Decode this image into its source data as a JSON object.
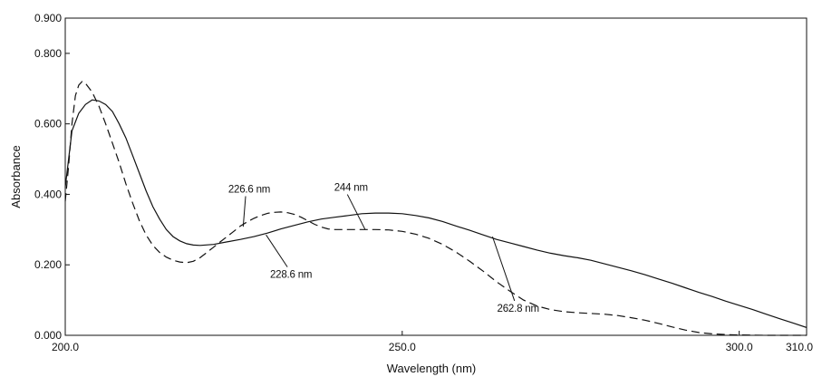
{
  "chart_data": {
    "type": "line",
    "title": "",
    "xlabel": "Wavelength (nm)",
    "ylabel": "Absorbance",
    "xlim": [
      200,
      310
    ],
    "ylim": [
      0,
      0.9
    ],
    "x_ticks": [
      {
        "value": 200,
        "label": "200.0"
      },
      {
        "value": 250,
        "label": "250.0"
      },
      {
        "value": 300,
        "label": "300.0"
      },
      {
        "value": 310,
        "label": "310.0"
      }
    ],
    "y_ticks": [
      {
        "value": 0.0,
        "label": "0.000"
      },
      {
        "value": 0.2,
        "label": "0.200"
      },
      {
        "value": 0.4,
        "label": "0.400"
      },
      {
        "value": 0.6,
        "label": "0.600"
      },
      {
        "value": 0.8,
        "label": "0.800"
      },
      {
        "value": 0.9,
        "label": "0.900"
      }
    ],
    "grid": false,
    "legend": "none",
    "series": [
      {
        "style": "solid",
        "points": [
          [
            200,
            0.42
          ],
          [
            200.5,
            0.5
          ],
          [
            201,
            0.58
          ],
          [
            202,
            0.63
          ],
          [
            203,
            0.655
          ],
          [
            204,
            0.668
          ],
          [
            205,
            0.665
          ],
          [
            206,
            0.655
          ],
          [
            207,
            0.635
          ],
          [
            208,
            0.6
          ],
          [
            209,
            0.56
          ],
          [
            210,
            0.51
          ],
          [
            211,
            0.46
          ],
          [
            212,
            0.41
          ],
          [
            213,
            0.365
          ],
          [
            214,
            0.33
          ],
          [
            215,
            0.3
          ],
          [
            216,
            0.28
          ],
          [
            217,
            0.268
          ],
          [
            218,
            0.26
          ],
          [
            219,
            0.256
          ],
          [
            220,
            0.255
          ],
          [
            222,
            0.258
          ],
          [
            224,
            0.265
          ],
          [
            226,
            0.272
          ],
          [
            228,
            0.28
          ],
          [
            230,
            0.29
          ],
          [
            232,
            0.302
          ],
          [
            234,
            0.312
          ],
          [
            236,
            0.322
          ],
          [
            238,
            0.33
          ],
          [
            240,
            0.335
          ],
          [
            242,
            0.34
          ],
          [
            244,
            0.345
          ],
          [
            246,
            0.347
          ],
          [
            248,
            0.347
          ],
          [
            250,
            0.345
          ],
          [
            252,
            0.34
          ],
          [
            254,
            0.333
          ],
          [
            256,
            0.323
          ],
          [
            258,
            0.31
          ],
          [
            260,
            0.298
          ],
          [
            262,
            0.285
          ],
          [
            264,
            0.272
          ],
          [
            266,
            0.262
          ],
          [
            268,
            0.252
          ],
          [
            270,
            0.242
          ],
          [
            272,
            0.233
          ],
          [
            274,
            0.226
          ],
          [
            276,
            0.22
          ],
          [
            278,
            0.213
          ],
          [
            280,
            0.203
          ],
          [
            282,
            0.193
          ],
          [
            284,
            0.183
          ],
          [
            286,
            0.172
          ],
          [
            288,
            0.16
          ],
          [
            290,
            0.148
          ],
          [
            292,
            0.135
          ],
          [
            294,
            0.122
          ],
          [
            296,
            0.11
          ],
          [
            298,
            0.097
          ],
          [
            300,
            0.085
          ],
          [
            302,
            0.073
          ],
          [
            304,
            0.06
          ],
          [
            306,
            0.047
          ],
          [
            308,
            0.035
          ],
          [
            310,
            0.022
          ]
        ]
      },
      {
        "style": "dashed",
        "points": [
          [
            200,
            0.38
          ],
          [
            200.5,
            0.48
          ],
          [
            201,
            0.6
          ],
          [
            201.5,
            0.68
          ],
          [
            202,
            0.71
          ],
          [
            202.5,
            0.72
          ],
          [
            203,
            0.715
          ],
          [
            204,
            0.69
          ],
          [
            205,
            0.65
          ],
          [
            206,
            0.6
          ],
          [
            207,
            0.545
          ],
          [
            208,
            0.49
          ],
          [
            209,
            0.43
          ],
          [
            210,
            0.375
          ],
          [
            211,
            0.325
          ],
          [
            212,
            0.285
          ],
          [
            213,
            0.255
          ],
          [
            214,
            0.235
          ],
          [
            215,
            0.222
          ],
          [
            216,
            0.213
          ],
          [
            217,
            0.208
          ],
          [
            218,
            0.206
          ],
          [
            219,
            0.21
          ],
          [
            220,
            0.22
          ],
          [
            221,
            0.235
          ],
          [
            222,
            0.25
          ],
          [
            223,
            0.265
          ],
          [
            224,
            0.28
          ],
          [
            225,
            0.295
          ],
          [
            226,
            0.31
          ],
          [
            227,
            0.322
          ],
          [
            228,
            0.332
          ],
          [
            229,
            0.34
          ],
          [
            230,
            0.346
          ],
          [
            231,
            0.349
          ],
          [
            232,
            0.35
          ],
          [
            233,
            0.348
          ],
          [
            234,
            0.343
          ],
          [
            235,
            0.335
          ],
          [
            236,
            0.325
          ],
          [
            237,
            0.315
          ],
          [
            238,
            0.307
          ],
          [
            239,
            0.302
          ],
          [
            240,
            0.3
          ],
          [
            242,
            0.3
          ],
          [
            244,
            0.3
          ],
          [
            246,
            0.3
          ],
          [
            248,
            0.299
          ],
          [
            250,
            0.295
          ],
          [
            252,
            0.287
          ],
          [
            254,
            0.275
          ],
          [
            256,
            0.258
          ],
          [
            258,
            0.236
          ],
          [
            260,
            0.21
          ],
          [
            262,
            0.182
          ],
          [
            264,
            0.152
          ],
          [
            266,
            0.125
          ],
          [
            268,
            0.1
          ],
          [
            270,
            0.083
          ],
          [
            272,
            0.073
          ],
          [
            274,
            0.067
          ],
          [
            276,
            0.064
          ],
          [
            278,
            0.062
          ],
          [
            280,
            0.06
          ],
          [
            282,
            0.056
          ],
          [
            284,
            0.05
          ],
          [
            286,
            0.043
          ],
          [
            288,
            0.034
          ],
          [
            290,
            0.024
          ],
          [
            292,
            0.015
          ],
          [
            294,
            0.008
          ],
          [
            296,
            0.004
          ],
          [
            298,
            0.002
          ],
          [
            300,
            0.001
          ],
          [
            304,
            0.0
          ],
          [
            310,
            0.0
          ]
        ]
      }
    ],
    "annotations": [
      {
        "text": "226.6 nm",
        "label_x": 227.3,
        "label_y": 0.405,
        "target": [
          226.4,
          0.308
        ]
      },
      {
        "text": "244 nm",
        "label_x": 242.4,
        "label_y": 0.41,
        "target": [
          244.5,
          0.3
        ]
      },
      {
        "text": "228.6 nm",
        "label_x": 233.5,
        "label_y": 0.163,
        "target": [
          229.8,
          0.285
        ]
      },
      {
        "text": "262.8 nm",
        "label_x": 267.2,
        "label_y": 0.067,
        "target": [
          263.4,
          0.28
        ]
      }
    ]
  }
}
